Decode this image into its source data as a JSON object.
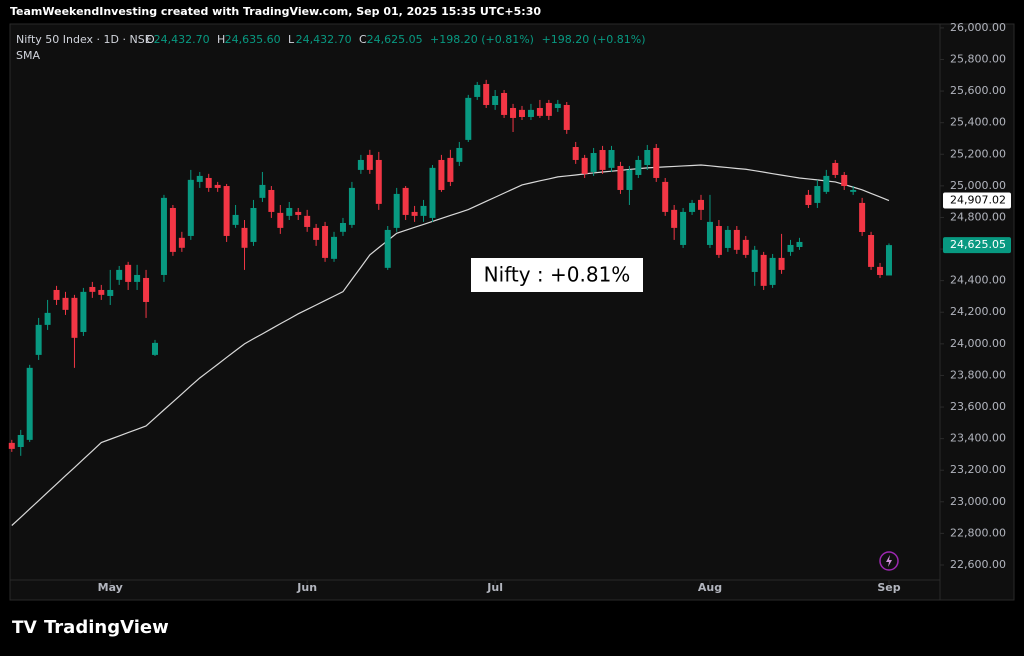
{
  "header": "TeamWeekendInvesting created with TradingView.com, Sep 01, 2025 15:35 UTC+5:30",
  "footer_logo": "TradingView",
  "chart_data": {
    "type": "candlestick",
    "legend": {
      "symbol": "Nifty 50 Index · 1D · NSE",
      "ohlc": [
        {
          "label": "O",
          "value": "24,432.70"
        },
        {
          "label": "H",
          "value": "24,635.60"
        },
        {
          "label": "L",
          "value": "24,432.70"
        },
        {
          "label": "C",
          "value": "24,625.05"
        }
      ],
      "changes": [
        "+198.20 (+0.81%)",
        "+198.20 (+0.81%)"
      ],
      "indicator": "SMA"
    },
    "annotation": "Nifty : +0.81%",
    "up_color": "#089981",
    "down_color": "#f23645",
    "xlim": [
      -0.2,
      103.7
    ],
    "xticks": [
      {
        "value": 11,
        "label": "May"
      },
      {
        "value": 33,
        "label": "Jun"
      },
      {
        "value": 54,
        "label": "Jul"
      },
      {
        "value": 78,
        "label": "Aug"
      },
      {
        "value": 98,
        "label": "Sep"
      }
    ],
    "ylim": [
      22505,
      26050
    ],
    "yticks": [
      {
        "value": 22600,
        "label": "22,600.00"
      },
      {
        "value": 22800,
        "label": "22,800.00"
      },
      {
        "value": 23000,
        "label": "23,000.00"
      },
      {
        "value": 23200,
        "label": "23,200.00"
      },
      {
        "value": 23400,
        "label": "23,400.00"
      },
      {
        "value": 23600,
        "label": "23,600.00"
      },
      {
        "value": 23800,
        "label": "23,800.00"
      },
      {
        "value": 24000,
        "label": "24,000.00"
      },
      {
        "value": 24200,
        "label": "24,200.00"
      },
      {
        "value": 24400,
        "label": "24,400.00"
      },
      {
        "value": 24600,
        "label": "24,600.00"
      },
      {
        "value": 24800,
        "label": "24,800.00"
      },
      {
        "value": 25000,
        "label": "25,000.00"
      },
      {
        "value": 25200,
        "label": "25,200.00"
      },
      {
        "value": 25400,
        "label": "25,400.00"
      },
      {
        "value": 25600,
        "label": "25,600.00"
      },
      {
        "value": 25800,
        "label": "25,800.00"
      },
      {
        "value": 26000,
        "label": "26,000.00"
      }
    ],
    "grid": false,
    "candles": {
      "name": "Nifty 50 Index",
      "open": [
        23373,
        23347,
        23392,
        23930,
        24120,
        24341,
        24291,
        24291,
        24075,
        24360,
        24341,
        24303,
        24405,
        24500,
        24392,
        24417,
        23930,
        24436,
        24860,
        24671,
        24683,
        25025,
        25050,
        25006,
        24999,
        24753,
        24734,
        24645,
        24924,
        24974,
        24829,
        24810,
        24835,
        24810,
        24734,
        24746,
        24538,
        24709,
        24753,
        25101,
        25196,
        25164,
        24481,
        24734,
        24987,
        24835,
        24810,
        24797,
        25164,
        25177,
        25152,
        25291,
        25563,
        25645,
        25512,
        25588,
        25493,
        25481,
        25436,
        25493,
        25525,
        25493,
        25512,
        25246,
        25177,
        25088,
        25227,
        25114,
        25126,
        24974,
        25069,
        25132,
        25240,
        25025,
        24848,
        24626,
        24835,
        24911,
        24626,
        24746,
        24607,
        24721,
        24658,
        24455,
        24563,
        24373,
        24544,
        24582,
        24613,
        24943,
        24892,
        24962,
        25145,
        25069,
        24962,
        24892,
        24689,
        24487,
        24432.7
      ],
      "high": [
        23392,
        23455,
        23867,
        24164,
        24278,
        24367,
        24329,
        24310,
        24354,
        24392,
        24373,
        24468,
        24493,
        24519,
        24500,
        24468,
        24025,
        24943,
        24879,
        24709,
        25101,
        25088,
        25076,
        25025,
        25012,
        24879,
        24784,
        24911,
        25088,
        24999,
        24879,
        24898,
        24860,
        24848,
        24759,
        24772,
        24709,
        24797,
        25025,
        25196,
        25228,
        25215,
        24746,
        24987,
        24999,
        24873,
        24911,
        25132,
        25196,
        25228,
        25278,
        25576,
        25658,
        25671,
        25607,
        25607,
        25519,
        25506,
        25519,
        25544,
        25544,
        25544,
        25531,
        25278,
        25196,
        25240,
        25253,
        25253,
        25152,
        25126,
        25190,
        25259,
        25265,
        25050,
        24879,
        24860,
        24911,
        24943,
        24943,
        24784,
        24746,
        24746,
        24683,
        24620,
        24582,
        24569,
        24696,
        24658,
        24671,
        24974,
        25038,
        25101,
        25164,
        25088,
        24999,
        24924,
        24709,
        24512,
        24635.6
      ],
      "low": [
        23316,
        23291,
        23379,
        23898,
        24088,
        24246,
        24183,
        23848,
        24050,
        24291,
        24278,
        24246,
        24373,
        24341,
        24341,
        24164,
        23923,
        24392,
        24557,
        24582,
        24658,
        24987,
        24962,
        24962,
        24645,
        24734,
        24468,
        24620,
        24898,
        24797,
        24696,
        24784,
        24784,
        24709,
        24620,
        24519,
        24519,
        24683,
        24734,
        25076,
        25076,
        24848,
        24468,
        24709,
        24784,
        24772,
        24772,
        24772,
        24962,
        24999,
        25126,
        25278,
        25544,
        25493,
        25481,
        25430,
        25341,
        25417,
        25417,
        25430,
        25417,
        25468,
        25329,
        25139,
        25050,
        25063,
        25076,
        25088,
        24949,
        24879,
        25050,
        25101,
        25025,
        24810,
        24658,
        24607,
        24816,
        24784,
        24607,
        24544,
        24582,
        24569,
        24544,
        24367,
        24341,
        24354,
        24443,
        24557,
        24595,
        24860,
        24860,
        24949,
        25050,
        24974,
        24943,
        24683,
        24468,
        24417,
        24432.7
      ],
      "close": [
        23335,
        23423,
        23848,
        24120,
        24196,
        24278,
        24215,
        24038,
        24329,
        24329,
        24310,
        24341,
        24468,
        24392,
        24436,
        24265,
        24006,
        24924,
        24582,
        24608,
        25038,
        25063,
        24987,
        24987,
        24683,
        24816,
        24608,
        24860,
        25006,
        24835,
        24734,
        24860,
        24816,
        24740,
        24658,
        24544,
        24677,
        24765,
        24987,
        25164,
        25101,
        24886,
        24721,
        24949,
        24816,
        24810,
        24873,
        25114,
        24974,
        25025,
        25240,
        25557,
        25639,
        25512,
        25569,
        25449,
        25430,
        25436,
        25481,
        25443,
        25443,
        25519,
        25354,
        25164,
        25076,
        25208,
        25101,
        25227,
        24974,
        25101,
        25164,
        25227,
        25050,
        24835,
        24734,
        24835,
        24892,
        24848,
        24772,
        24563,
        24721,
        24595,
        24563,
        24595,
        24367,
        24544,
        24468,
        24626,
        24645,
        24879,
        24999,
        25063,
        25069,
        24999,
        24974,
        24708,
        24487,
        24436,
        24625.05
      ],
      "last_value_label": "24,625.05"
    },
    "sma": {
      "name": "SMA",
      "color": "#d9d9d9",
      "values": [
        22850,
        22902,
        22955,
        23007,
        23060,
        23112,
        23165,
        23217,
        23270,
        23322,
        23375,
        23396,
        23417,
        23438,
        23459,
        23480,
        23531,
        23582,
        23632,
        23683,
        23734,
        23784,
        23827,
        23870,
        23914,
        23957,
        24000,
        24032,
        24063,
        24095,
        24127,
        24158,
        24190,
        24218,
        24246,
        24274,
        24302,
        24330,
        24408,
        24485,
        24563,
        24609,
        24654,
        24700,
        24719,
        24738,
        24756,
        24775,
        24794,
        24813,
        24831,
        24850,
        24876,
        24902,
        24928,
        24954,
        24980,
        25006,
        25019,
        25032,
        25044,
        25057,
        25063,
        25069,
        25076,
        25082,
        25088,
        25093,
        25098,
        25104,
        25109,
        25114,
        25117,
        25120,
        25123,
        25126,
        25129,
        25132,
        25127,
        25121,
        25116,
        25110,
        25105,
        25096,
        25087,
        25077,
        25068,
        25059,
        25050,
        25044,
        25038,
        25031,
        25025,
        25008,
        24992,
        24975,
        24952,
        24930,
        24907.02
      ],
      "last_value_label": "24,907.02"
    }
  }
}
